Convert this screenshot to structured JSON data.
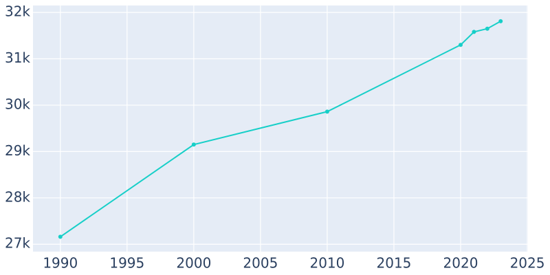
{
  "chart_data": {
    "type": "line",
    "x": [
      1990,
      2000,
      2010,
      2020,
      2021,
      2022,
      2023
    ],
    "series": [
      {
        "color": "#17cfc8",
        "values": [
          27160,
          29150,
          29860,
          31300,
          31580,
          31650,
          31810
        ]
      }
    ],
    "xlim": [
      1987.95,
      2025.05
    ],
    "xticks": [
      1990,
      1995,
      2000,
      2005,
      2010,
      2015,
      2020,
      2025
    ],
    "ylim": [
      26840,
      32150
    ],
    "yticks": [
      {
        "value": 27000,
        "label": "27k"
      },
      {
        "value": 28000,
        "label": "28k"
      },
      {
        "value": 29000,
        "label": "29k"
      },
      {
        "value": 30000,
        "label": "30k"
      },
      {
        "value": 31000,
        "label": "31k"
      },
      {
        "value": 32000,
        "label": "32k"
      }
    ],
    "grid": true
  }
}
